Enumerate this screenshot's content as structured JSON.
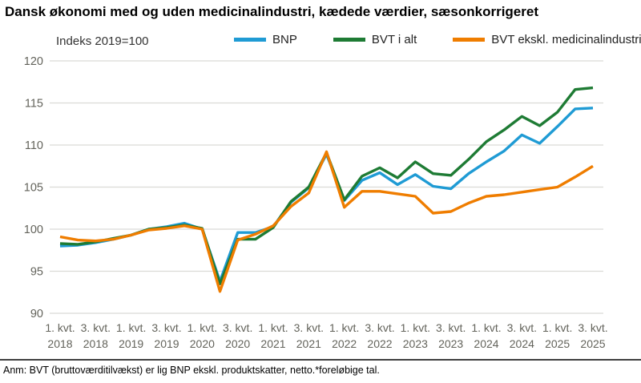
{
  "title": "Dansk økonomi med og uden medicinalindustri, kædede værdier, sæsonkorrigeret",
  "axis_note": "Indeks 2019=100",
  "footnote": "Anm: BVT (bruttoværditilvækst) er lig BNP ekskl. produktskatter, netto.*foreløbige tal.",
  "colors": {
    "bnp": "#1F9BD4",
    "bvt_total": "#1E7B34",
    "bvt_excl_pharma": "#EF7D00",
    "gridline": "#DBDBD6",
    "axis_text": "#63635B",
    "footnote_rule": "#404040"
  },
  "chart_data": {
    "type": "line",
    "title": "Dansk økonomi med og uden medicinalindustri, kædede værdier, sæsonkorrigeret",
    "subtitle": "Indeks 2019=100",
    "grid": "horizontal",
    "legend_position": "top",
    "ylim": [
      90,
      120
    ],
    "yticks": [
      90,
      95,
      100,
      105,
      110,
      115,
      120
    ],
    "x": [
      "2018K1",
      "2018K2",
      "2018K3",
      "2018K4",
      "2019K1",
      "2019K2",
      "2019K3",
      "2019K4",
      "2020K1",
      "2020K2",
      "2020K3",
      "2020K4",
      "2021K1",
      "2021K2",
      "2021K3",
      "2021K4",
      "2022K1",
      "2022K2",
      "2022K3",
      "2022K4",
      "2023K1",
      "2023K2",
      "2023K3",
      "2023K4",
      "2024K1",
      "2024K2",
      "2024K3",
      "2024K4",
      "2025K1",
      "2025K2",
      "2025K3"
    ],
    "xtick_labels": [
      {
        "line1": "1. kvt.",
        "line2": "2018"
      },
      {
        "line1": "3. kvt.",
        "line2": "2018"
      },
      {
        "line1": "1. kvt.",
        "line2": "2019"
      },
      {
        "line1": "3. kvt.",
        "line2": "2019"
      },
      {
        "line1": "1. kvt.",
        "line2": "2020"
      },
      {
        "line1": "3. kvt.",
        "line2": "2020"
      },
      {
        "line1": "1. kvt.",
        "line2": "2021"
      },
      {
        "line1": "3. kvt.",
        "line2": "2021"
      },
      {
        "line1": "1. kvt.",
        "line2": "2022"
      },
      {
        "line1": "3. kvt.",
        "line2": "2022"
      },
      {
        "line1": "1. kvt.",
        "line2": "2023"
      },
      {
        "line1": "3. kvt.",
        "line2": "2023"
      },
      {
        "line1": "1. kvt.",
        "line2": "2024"
      },
      {
        "line1": "3. kvt.",
        "line2": "2024"
      },
      {
        "line1": "1. kvt.",
        "line2": "2025"
      },
      {
        "line1": "3. kvt.",
        "line2": "2025"
      }
    ],
    "series": [
      {
        "name": "BNP",
        "color": "#1F9BD4",
        "values": [
          98.0,
          98.1,
          98.4,
          98.8,
          99.3,
          100.0,
          100.3,
          100.7,
          100.0,
          93.8,
          99.6,
          99.6,
          100.3,
          103.2,
          104.9,
          108.9,
          103.4,
          105.8,
          106.7,
          105.3,
          106.5,
          105.1,
          104.8,
          106.6,
          108.0,
          109.3,
          111.2,
          110.2,
          112.2,
          114.3,
          114.4
        ]
      },
      {
        "name": "BVT i alt",
        "color": "#1E7B34",
        "values": [
          98.3,
          98.2,
          98.5,
          98.9,
          99.3,
          100.0,
          100.2,
          100.5,
          100.1,
          93.5,
          98.8,
          98.8,
          100.2,
          103.3,
          105.0,
          109.1,
          103.5,
          106.3,
          107.3,
          106.1,
          108.0,
          106.6,
          106.4,
          108.3,
          110.4,
          111.8,
          113.4,
          112.3,
          113.9,
          116.6,
          116.8
        ]
      },
      {
        "name": "BVT ekskl. medicinalindustri",
        "color": "#EF7D00",
        "values": [
          99.1,
          98.7,
          98.6,
          98.8,
          99.3,
          99.9,
          100.1,
          100.4,
          100.0,
          92.6,
          98.7,
          99.4,
          100.4,
          102.7,
          104.3,
          109.2,
          102.6,
          104.5,
          104.5,
          104.2,
          103.9,
          101.9,
          102.1,
          103.1,
          103.9,
          104.1,
          104.4,
          104.7,
          105.0,
          106.2,
          107.5
        ]
      }
    ]
  }
}
